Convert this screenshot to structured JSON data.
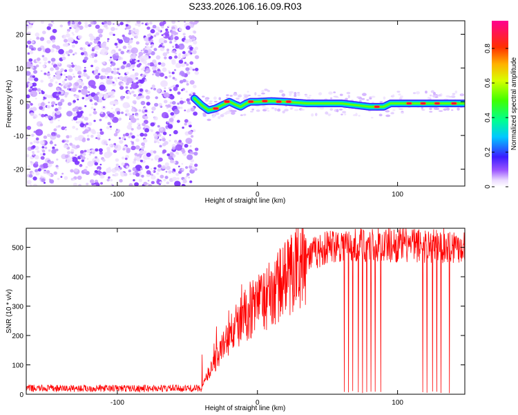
{
  "figure": {
    "title": "S233.2026.106.16.09.R03"
  },
  "chart_data": [
    {
      "type": "heatmap",
      "title": "S233.2026.106.16.09.R03",
      "xlabel": "Height of straight line (km)",
      "ylabel": "Frequency (Hz)",
      "xlim": [
        -165,
        148
      ],
      "ylim": [
        -25,
        24
      ],
      "xticks": [
        -100,
        0,
        100
      ],
      "yticks": [
        -20,
        -10,
        0,
        10,
        20
      ],
      "colorbar": {
        "label": "Normalized spectral amplitude",
        "range": [
          0,
          0.96
        ],
        "ticks": [
          0,
          0.2,
          0.4,
          0.6,
          0.8
        ]
      },
      "noise_region_x": [
        -165,
        -45
      ],
      "ridge": [
        {
          "x": -45,
          "y": 1.0
        },
        {
          "x": -40,
          "y": -1.0
        },
        {
          "x": -35,
          "y": -2.5
        },
        {
          "x": -30,
          "y": -2.0
        },
        {
          "x": -25,
          "y": -1.0
        },
        {
          "x": -20,
          "y": 0.0
        },
        {
          "x": -15,
          "y": -1.0
        },
        {
          "x": -12,
          "y": -1.5
        },
        {
          "x": -8,
          "y": -0.5
        },
        {
          "x": -5,
          "y": 0.0
        },
        {
          "x": 0,
          "y": 0.0
        },
        {
          "x": 10,
          "y": 0.2
        },
        {
          "x": 20,
          "y": 0.0
        },
        {
          "x": 35,
          "y": -0.5
        },
        {
          "x": 60,
          "y": -0.5
        },
        {
          "x": 80,
          "y": -1.5
        },
        {
          "x": 90,
          "y": -1.5
        },
        {
          "x": 95,
          "y": -0.5
        },
        {
          "x": 110,
          "y": -0.5
        },
        {
          "x": 148,
          "y": -0.5
        }
      ],
      "peaks": [
        {
          "x": -30,
          "y": -2.0
        },
        {
          "x": -22,
          "y": 0.0
        },
        {
          "x": -5,
          "y": 0.0
        },
        {
          "x": 5,
          "y": 0.2
        },
        {
          "x": 15,
          "y": 0.0
        },
        {
          "x": 22,
          "y": 0.0
        },
        {
          "x": 85,
          "y": -1.5
        },
        {
          "x": 108,
          "y": -0.5
        },
        {
          "x": 118,
          "y": -0.5
        },
        {
          "x": 128,
          "y": -0.5
        },
        {
          "x": 140,
          "y": -0.5
        }
      ]
    },
    {
      "type": "line",
      "xlabel": "Height of straight line (km)",
      "ylabel": "SNR (10 * v/v)",
      "xlim": [
        -165,
        148
      ],
      "ylim": [
        0,
        565
      ],
      "xticks": [
        -100,
        0,
        100
      ],
      "yticks": [
        0,
        100,
        200,
        300,
        400,
        500
      ],
      "line_color": "#ff0000",
      "envelope": [
        {
          "x": -165,
          "y": 20
        },
        {
          "x": -40,
          "y": 20
        },
        {
          "x": -32,
          "y": 100
        },
        {
          "x": -20,
          "y": 200
        },
        {
          "x": -5,
          "y": 290
        },
        {
          "x": 10,
          "y": 340
        },
        {
          "x": 25,
          "y": 420
        },
        {
          "x": 40,
          "y": 480
        },
        {
          "x": 55,
          "y": 510
        },
        {
          "x": 148,
          "y": 505
        }
      ],
      "dropouts": [
        62,
        65,
        68,
        72,
        75,
        78,
        81,
        84,
        88,
        118,
        121,
        125,
        128,
        131,
        137
      ]
    }
  ]
}
